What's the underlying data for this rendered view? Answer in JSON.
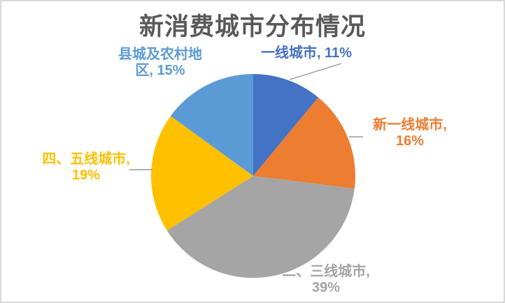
{
  "chart": {
    "title": "新消费城市分布情况",
    "title_color": "#595959",
    "background_color": "#ffffff",
    "frame_border_color": "#d9d9d9"
  },
  "chart_data": {
    "type": "pie",
    "title": "新消费城市分布情况",
    "start_angle_deg": 0,
    "direction": "clockwise",
    "legend_position": "none",
    "data_labels": "outside, category name + percent",
    "series": [
      {
        "name": "一线城市",
        "value": 11,
        "color": "#4472C4"
      },
      {
        "name": "新一线城市",
        "value": 16,
        "color": "#ED7D31"
      },
      {
        "name": "二、三线城市",
        "value": 39,
        "color": "#A5A5A5"
      },
      {
        "name": "四、五线城市",
        "value": 19,
        "color": "#FFC000"
      },
      {
        "name": "县城及农村地区",
        "value": 15,
        "color": "#5B9BD5"
      }
    ]
  },
  "labels": {
    "first_tier": {
      "line1": "一线城市, 11%",
      "line2": "",
      "color": "#4472C4"
    },
    "new_first_tier": {
      "line1": "新一线城市,",
      "line2": "16%",
      "color": "#ED7D31"
    },
    "second_third_tier": {
      "line1": "二、三线城市,",
      "line2": "39%",
      "color": "#A5A5A5"
    },
    "fourth_fifth_tier": {
      "line1": "四、五线城市,",
      "line2": "19%",
      "color": "#FFC000"
    },
    "county_rural": {
      "line1": "县城及农村地",
      "line2": "区, 15%",
      "color": "#5B9BD5"
    }
  },
  "leader_line_color": "#969696"
}
